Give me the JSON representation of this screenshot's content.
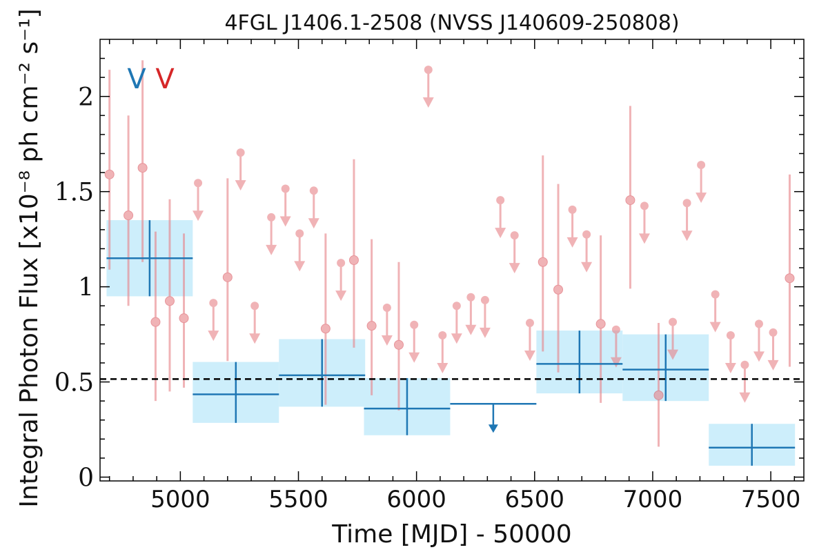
{
  "chart_data": {
    "type": "scatter",
    "title": "4FGL J1406.1-2508 (NVSS J140609-250808)",
    "xlabel": "Time [MJD] - 50000",
    "ylabel": "Integral Photon Flux [x10⁻⁸ ph cm⁻² s⁻¹]",
    "xlim": [
      4660,
      7640
    ],
    "ylim": [
      -0.02,
      2.3
    ],
    "x_ticks": [
      5000,
      5500,
      6000,
      6500,
      7000,
      7500
    ],
    "y_ticks": [
      0,
      0.5,
      1,
      1.5,
      2
    ],
    "y_tick_labels": [
      "0",
      "0.5",
      "1",
      "1.5",
      "2"
    ],
    "reference_line": {
      "y": 0.515,
      "style": "dashed",
      "color": "#000000"
    },
    "markers": [
      {
        "label": "V",
        "color": "#1f77b4"
      },
      {
        "label": "V",
        "color": "#d62728"
      }
    ],
    "colors": {
      "long_bins": "#1f77b4",
      "long_bins_band": "#cdeefb",
      "short_bins": "#e8858b"
    },
    "series": [
      {
        "bin_width": 365,
        "points": [
          {
            "x": 4870,
            "y": 1.15,
            "yerr": [
              0.95,
              1.35
            ]
          },
          {
            "x": 5235,
            "y": 0.435,
            "yerr": [
              0.285,
              0.605
            ]
          },
          {
            "x": 5600,
            "y": 0.535,
            "yerr": [
              0.37,
              0.725
            ]
          },
          {
            "x": 5960,
            "y": 0.36,
            "yerr": [
              0.22,
              0.52
            ]
          },
          {
            "x": 6690,
            "y": 0.595,
            "yerr": [
              0.44,
              0.77
            ]
          },
          {
            "x": 7055,
            "y": 0.565,
            "yerr": [
              0.4,
              0.75
            ]
          },
          {
            "x": 7420,
            "y": 0.155,
            "yerr": [
              0.06,
              0.28
            ]
          }
        ],
        "upper_limits": [
          {
            "x": 6325,
            "y": 0.385
          }
        ]
      },
      {
        "bin_width": 60,
        "points": [
          {
            "x": 4700,
            "y": 1.59,
            "yerr": [
              1.09,
              2.14
            ]
          },
          {
            "x": 4780,
            "y": 1.375,
            "yerr": [
              0.9,
              1.9
            ]
          },
          {
            "x": 4840,
            "y": 1.625,
            "yerr": [
              1.13,
              2.19
            ]
          },
          {
            "x": 4895,
            "y": 0.815,
            "yerr": [
              0.4,
              1.29
            ]
          },
          {
            "x": 4955,
            "y": 0.925,
            "yerr": [
              0.45,
              1.46
            ]
          },
          {
            "x": 5015,
            "y": 0.835,
            "yerr": [
              0.47,
              1.28
            ]
          },
          {
            "x": 5200,
            "y": 1.05,
            "yerr": [
              0.61,
              1.57
            ]
          },
          {
            "x": 5615,
            "y": 0.78,
            "yerr": [
              0.38,
              1.28
            ]
          },
          {
            "x": 5735,
            "y": 1.14,
            "yerr": [
              0.68,
              1.67
            ]
          },
          {
            "x": 5810,
            "y": 0.795,
            "yerr": [
              0.43,
              1.25
            ]
          },
          {
            "x": 5925,
            "y": 0.695,
            "yerr": [
              0.35,
              1.13
            ]
          },
          {
            "x": 6535,
            "y": 1.13,
            "yerr": [
              0.66,
              1.69
            ]
          },
          {
            "x": 6600,
            "y": 0.985,
            "yerr": [
              0.55,
              1.54
            ]
          },
          {
            "x": 6780,
            "y": 0.805,
            "yerr": [
              0.39,
              1.27
            ]
          },
          {
            "x": 6905,
            "y": 1.455,
            "yerr": [
              0.99,
              1.95
            ]
          },
          {
            "x": 7025,
            "y": 0.43,
            "yerr": [
              0.16,
              0.81
            ]
          },
          {
            "x": 7580,
            "y": 1.045,
            "yerr": [
              0.58,
              1.59
            ]
          }
        ],
        "upper_limits": [
          {
            "x": 5075,
            "y": 1.545
          },
          {
            "x": 5140,
            "y": 0.915
          },
          {
            "x": 5255,
            "y": 1.705
          },
          {
            "x": 5315,
            "y": 0.9
          },
          {
            "x": 5385,
            "y": 1.365
          },
          {
            "x": 5445,
            "y": 1.515
          },
          {
            "x": 5505,
            "y": 1.28
          },
          {
            "x": 5565,
            "y": 1.505
          },
          {
            "x": 5680,
            "y": 1.125
          },
          {
            "x": 5875,
            "y": 0.89
          },
          {
            "x": 5990,
            "y": 0.8
          },
          {
            "x": 6050,
            "y": 2.14
          },
          {
            "x": 6110,
            "y": 0.745
          },
          {
            "x": 6170,
            "y": 0.9
          },
          {
            "x": 6230,
            "y": 0.945
          },
          {
            "x": 6290,
            "y": 0.93
          },
          {
            "x": 6355,
            "y": 1.455
          },
          {
            "x": 6415,
            "y": 1.27
          },
          {
            "x": 6480,
            "y": 0.81
          },
          {
            "x": 6660,
            "y": 1.405
          },
          {
            "x": 6720,
            "y": 1.275
          },
          {
            "x": 6845,
            "y": 0.775
          },
          {
            "x": 6965,
            "y": 1.425
          },
          {
            "x": 7085,
            "y": 0.815
          },
          {
            "x": 7145,
            "y": 1.44
          },
          {
            "x": 7205,
            "y": 1.64
          },
          {
            "x": 7265,
            "y": 0.96
          },
          {
            "x": 7330,
            "y": 0.745
          },
          {
            "x": 7390,
            "y": 0.59
          },
          {
            "x": 7450,
            "y": 0.805
          },
          {
            "x": 7510,
            "y": 0.76
          }
        ]
      }
    ]
  }
}
